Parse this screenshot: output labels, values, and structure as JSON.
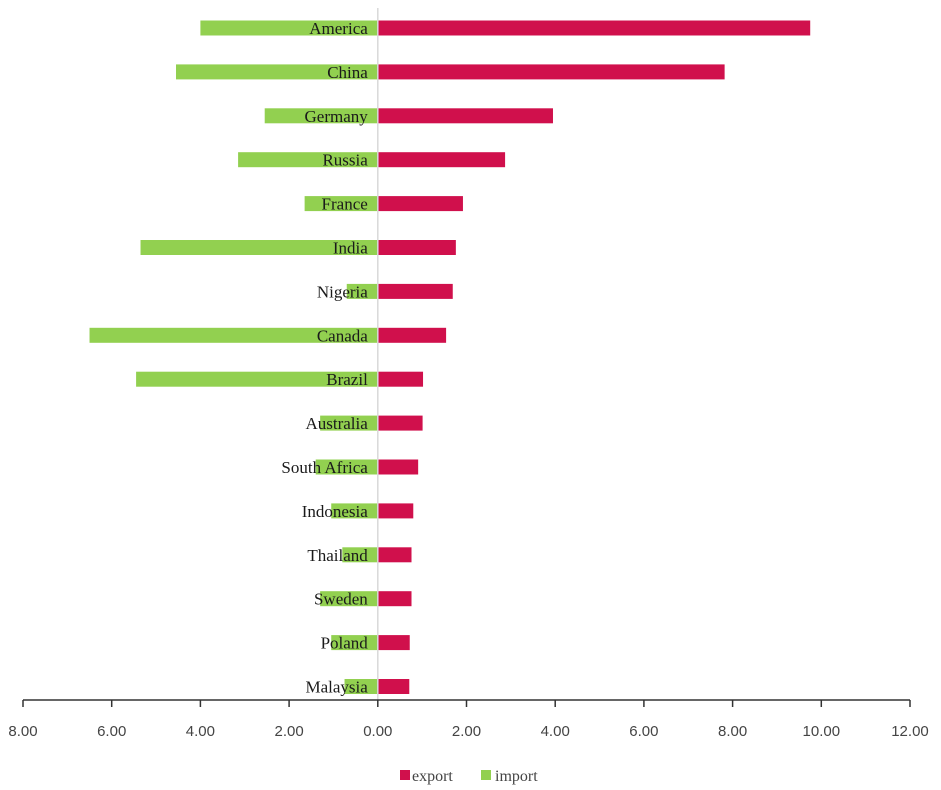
{
  "chart_data": {
    "type": "bar",
    "orientation": "horizontal-diverging",
    "title": "",
    "xlabel": "",
    "ylabel": "",
    "xlim": [
      -8,
      12
    ],
    "ticks": [
      -8,
      -6,
      -4,
      -2,
      0,
      2,
      4,
      6,
      8,
      10,
      12
    ],
    "tick_labels": [
      "8.00",
      "6.00",
      "4.00",
      "2.00",
      "0.00",
      "2.00",
      "4.00",
      "6.00",
      "8.00",
      "10.00",
      "12.00"
    ],
    "grid": false,
    "legend_position": "bottom",
    "categories": [
      "America",
      "China",
      "Germany",
      "Russia",
      "France",
      "India",
      "Nigeria",
      "Canada",
      "Brazil",
      "Australia",
      "South Africa",
      "Indonesia",
      "Thailand",
      "Sweden",
      "Poland",
      "Malaysia"
    ],
    "series": [
      {
        "name": "export",
        "color": "#D0104C",
        "direction": "right",
        "values": [
          9.75,
          7.82,
          3.95,
          2.87,
          1.92,
          1.76,
          1.69,
          1.54,
          1.02,
          1.01,
          0.91,
          0.8,
          0.76,
          0.76,
          0.72,
          0.71
        ]
      },
      {
        "name": "import",
        "color": "#92D050",
        "direction": "left",
        "values": [
          4.0,
          4.55,
          2.55,
          3.15,
          1.65,
          5.35,
          0.7,
          6.5,
          5.45,
          1.3,
          1.4,
          1.05,
          0.8,
          1.3,
          1.05,
          0.75
        ]
      }
    ]
  }
}
